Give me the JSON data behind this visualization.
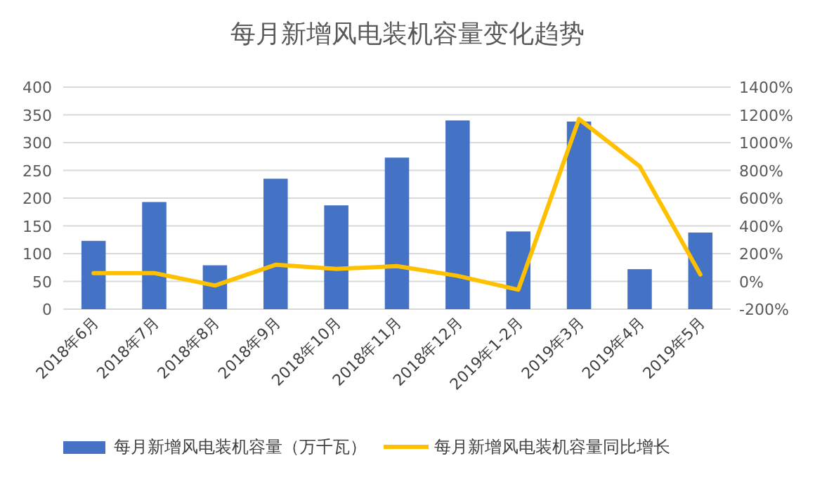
{
  "chart_data": {
    "type": "bar",
    "title": "每月新增风电装机容量变化趋势",
    "categories": [
      "2018年6月",
      "2018年7月",
      "2018年8月",
      "2018年9月",
      "2018年10月",
      "2018年11月",
      "2018年12月",
      "2019年1-2月",
      "2019年3月",
      "2019年4月",
      "2019年5月"
    ],
    "series": [
      {
        "name": "每月新增风电装机容量（万千瓦）",
        "color": "#4472c4",
        "values": [
          123,
          193,
          79,
          235,
          187,
          273,
          340,
          140,
          338,
          72,
          138
        ]
      },
      {
        "name": "每月新增风电装机容量同比增长",
        "type": "line",
        "axis": "y2",
        "color": "#ffc000",
        "values": [
          60,
          60,
          -30,
          120,
          90,
          110,
          40,
          -60,
          1170,
          830,
          50
        ]
      }
    ],
    "ylim": [
      0,
      400
    ],
    "yticks": [
      0,
      50,
      100,
      150,
      200,
      250,
      300,
      350,
      400
    ],
    "y2lim": [
      -200,
      1400
    ],
    "y2ticks": [
      {
        "value": -200,
        "label": "-200%"
      },
      {
        "value": 0,
        "label": "0%"
      },
      {
        "value": 200,
        "label": "200%"
      },
      {
        "value": 400,
        "label": "400%"
      },
      {
        "value": 600,
        "label": "600%"
      },
      {
        "value": 800,
        "label": "800%"
      },
      {
        "value": 1000,
        "label": "1000%"
      },
      {
        "value": 1200,
        "label": "1200%"
      },
      {
        "value": 1400,
        "label": "1400%"
      }
    ],
    "grid": "y",
    "legend": "bottom",
    "marker": "none",
    "line_style": "solid"
  }
}
